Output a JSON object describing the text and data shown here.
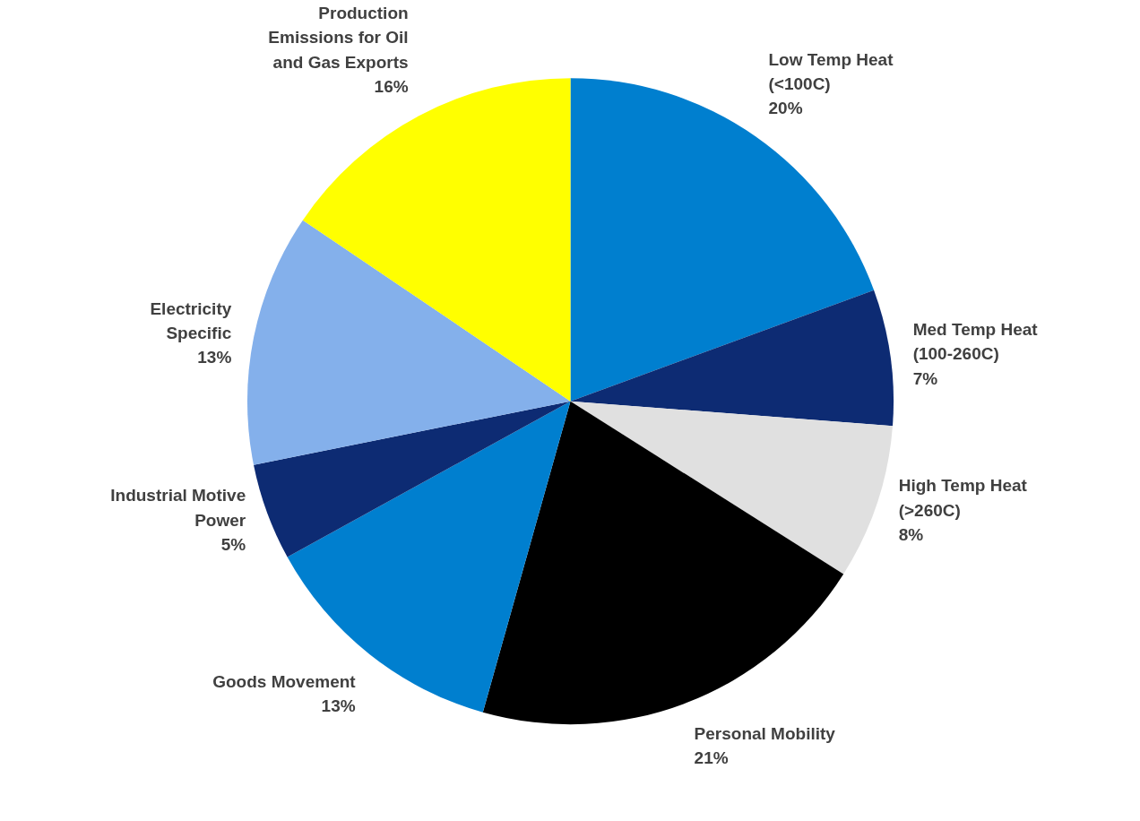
{
  "chart_data": {
    "type": "pie",
    "categories": [
      "Low Temp Heat\n(<100C)",
      "Med Temp Heat\n(100-260C)",
      "High Temp Heat\n(>260C)",
      "Personal Mobility",
      "Goods Movement",
      "Industrial Motive\nPower",
      "Electricity\nSpecific",
      "Production\nEmissions for Oil\nand Gas Exports"
    ],
    "values": [
      20,
      7,
      8,
      21,
      13,
      5,
      13,
      16
    ],
    "value_labels": [
      "20%",
      "7%",
      "8%",
      "21%",
      "13%",
      "5%",
      "13%",
      "16%"
    ],
    "colors": [
      "#007fcf",
      "#0d2b73",
      "#e0e0e0",
      "#000000",
      "#007fcf",
      "#0d2b73",
      "#84b0eb",
      "#ffff00"
    ]
  }
}
